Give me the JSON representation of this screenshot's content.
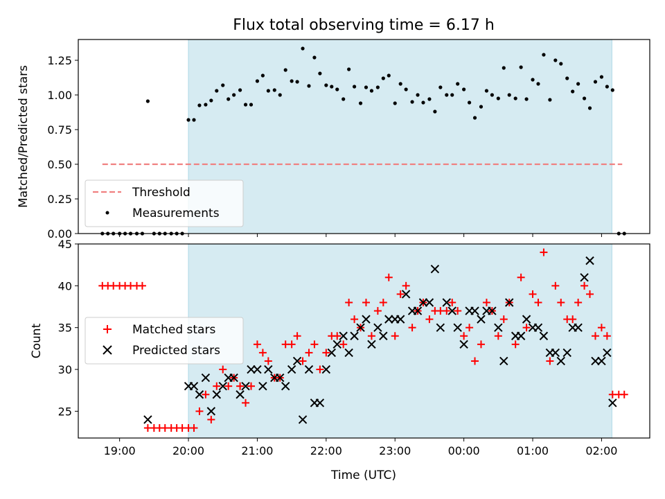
{
  "chart_data": {
    "title": "Flux total observing time = 6.17 h",
    "xlabel": "Time (UTC)",
    "xlim_hours": [
      18.4,
      26.7
    ],
    "x_ticks": [
      {
        "label": "19:00",
        "hour": 19
      },
      {
        "label": "20:00",
        "hour": 20
      },
      {
        "label": "21:00",
        "hour": 21
      },
      {
        "label": "22:00",
        "hour": 22
      },
      {
        "label": "23:00",
        "hour": 23
      },
      {
        "label": "00:00",
        "hour": 24
      },
      {
        "label": "01:00",
        "hour": 25
      },
      {
        "label": "02:00",
        "hour": 26
      }
    ],
    "observing_span_hours": [
      20.0,
      26.15
    ],
    "shade_color": "#add8e6",
    "top_panel": {
      "type": "scatter",
      "ylabel": "Matched/Predicted stars",
      "ylim": [
        0,
        1.4
      ],
      "yticks": [
        "0.00",
        "0.25",
        "0.50",
        "0.75",
        "1.00",
        "1.25"
      ],
      "threshold": {
        "name": "Threshold",
        "value": 0.5,
        "x_range": [
          18.75,
          26.3
        ],
        "color": "#f08080"
      },
      "measurements": {
        "name": "Measurements",
        "color": "#000000",
        "points": [
          [
            18.75,
            0
          ],
          [
            18.83,
            0
          ],
          [
            18.91,
            0
          ],
          [
            19.0,
            0
          ],
          [
            19.08,
            0
          ],
          [
            19.16,
            0
          ],
          [
            19.25,
            0
          ],
          [
            19.33,
            0
          ],
          [
            19.41,
            0.955
          ],
          [
            19.5,
            0
          ],
          [
            19.58,
            0
          ],
          [
            19.66,
            0
          ],
          [
            19.75,
            0
          ],
          [
            19.83,
            0
          ],
          [
            19.91,
            0
          ],
          [
            20.0,
            0.82
          ],
          [
            20.08,
            0.82
          ],
          [
            20.16,
            0.925
          ],
          [
            20.25,
            0.93
          ],
          [
            20.33,
            0.96
          ],
          [
            20.41,
            1.03
          ],
          [
            20.5,
            1.07
          ],
          [
            20.58,
            0.97
          ],
          [
            20.66,
            1.0
          ],
          [
            20.75,
            1.035
          ],
          [
            20.83,
            0.93
          ],
          [
            20.91,
            0.93
          ],
          [
            21.0,
            1.1
          ],
          [
            21.08,
            1.14
          ],
          [
            21.16,
            1.03
          ],
          [
            21.25,
            1.035
          ],
          [
            21.33,
            1.0
          ],
          [
            21.41,
            1.18
          ],
          [
            21.5,
            1.1
          ],
          [
            21.58,
            1.095
          ],
          [
            21.66,
            1.335
          ],
          [
            21.75,
            1.065
          ],
          [
            21.83,
            1.27
          ],
          [
            21.91,
            1.155
          ],
          [
            22.0,
            1.07
          ],
          [
            22.08,
            1.06
          ],
          [
            22.16,
            1.04
          ],
          [
            22.25,
            0.97
          ],
          [
            22.33,
            1.185
          ],
          [
            22.41,
            1.06
          ],
          [
            22.5,
            0.94
          ],
          [
            22.58,
            1.055
          ],
          [
            22.66,
            1.03
          ],
          [
            22.75,
            1.055
          ],
          [
            22.83,
            1.12
          ],
          [
            22.91,
            1.14
          ],
          [
            23.0,
            0.94
          ],
          [
            23.08,
            1.08
          ],
          [
            23.16,
            1.04
          ],
          [
            23.25,
            0.95
          ],
          [
            23.33,
            1.0
          ],
          [
            23.41,
            0.945
          ],
          [
            23.5,
            0.97
          ],
          [
            23.58,
            0.88
          ],
          [
            23.66,
            1.055
          ],
          [
            23.75,
            1.0
          ],
          [
            23.83,
            1.0
          ],
          [
            23.91,
            1.08
          ],
          [
            24.0,
            1.04
          ],
          [
            24.08,
            0.945
          ],
          [
            24.16,
            0.835
          ],
          [
            24.25,
            0.915
          ],
          [
            24.33,
            1.03
          ],
          [
            24.41,
            1.0
          ],
          [
            24.5,
            0.975
          ],
          [
            24.58,
            1.195
          ],
          [
            24.66,
            1.0
          ],
          [
            24.75,
            0.975
          ],
          [
            24.83,
            1.2
          ],
          [
            24.91,
            0.97
          ],
          [
            25.0,
            1.11
          ],
          [
            25.08,
            1.08
          ],
          [
            25.16,
            1.29
          ],
          [
            25.25,
            0.965
          ],
          [
            25.33,
            1.25
          ],
          [
            25.41,
            1.225
          ],
          [
            25.5,
            1.12
          ],
          [
            25.58,
            1.025
          ],
          [
            25.66,
            1.08
          ],
          [
            25.75,
            0.975
          ],
          [
            25.83,
            0.905
          ],
          [
            25.91,
            1.095
          ],
          [
            26.0,
            1.13
          ],
          [
            26.08,
            1.06
          ],
          [
            26.16,
            1.035
          ],
          [
            26.25,
            0
          ],
          [
            26.33,
            0
          ]
        ]
      },
      "legend_position": "lower-left"
    },
    "bottom_panel": {
      "type": "scatter",
      "ylabel": "Count",
      "ylim": [
        21.8,
        45
      ],
      "yticks": [
        "25",
        "30",
        "35",
        "40",
        "45"
      ],
      "matched": {
        "name": "Matched stars",
        "color": "#ff0000",
        "points": [
          [
            18.75,
            40
          ],
          [
            18.83,
            40
          ],
          [
            18.91,
            40
          ],
          [
            19.0,
            40
          ],
          [
            19.08,
            40
          ],
          [
            19.16,
            40
          ],
          [
            19.25,
            40
          ],
          [
            19.33,
            40
          ],
          [
            19.41,
            23
          ],
          [
            19.5,
            23
          ],
          [
            19.58,
            23
          ],
          [
            19.66,
            23
          ],
          [
            19.75,
            23
          ],
          [
            19.83,
            23
          ],
          [
            19.91,
            23
          ],
          [
            20.0,
            23
          ],
          [
            20.08,
            23
          ],
          [
            20.16,
            25
          ],
          [
            20.25,
            27
          ],
          [
            20.33,
            24
          ],
          [
            20.41,
            28
          ],
          [
            20.5,
            30
          ],
          [
            20.58,
            28
          ],
          [
            20.66,
            29
          ],
          [
            20.75,
            28
          ],
          [
            20.83,
            26
          ],
          [
            20.91,
            28
          ],
          [
            21.0,
            33
          ],
          [
            21.08,
            32
          ],
          [
            21.16,
            31
          ],
          [
            21.25,
            29
          ],
          [
            21.33,
            29
          ],
          [
            21.41,
            33
          ],
          [
            21.5,
            33
          ],
          [
            21.58,
            34
          ],
          [
            21.66,
            31
          ],
          [
            21.75,
            32
          ],
          [
            21.83,
            33
          ],
          [
            21.91,
            30
          ],
          [
            22.0,
            32
          ],
          [
            22.08,
            34
          ],
          [
            22.16,
            34
          ],
          [
            22.25,
            33
          ],
          [
            22.33,
            38
          ],
          [
            22.41,
            36
          ],
          [
            22.5,
            35
          ],
          [
            22.58,
            38
          ],
          [
            22.66,
            34
          ],
          [
            22.75,
            37
          ],
          [
            22.83,
            38
          ],
          [
            22.91,
            41
          ],
          [
            23.0,
            34
          ],
          [
            23.08,
            39
          ],
          [
            23.16,
            40
          ],
          [
            23.25,
            35
          ],
          [
            23.33,
            37
          ],
          [
            23.41,
            38
          ],
          [
            23.5,
            36
          ],
          [
            23.58,
            37
          ],
          [
            23.66,
            37
          ],
          [
            23.75,
            37
          ],
          [
            23.83,
            38
          ],
          [
            23.91,
            37
          ],
          [
            24.0,
            34
          ],
          [
            24.08,
            35
          ],
          [
            24.16,
            31
          ],
          [
            24.25,
            33
          ],
          [
            24.33,
            38
          ],
          [
            24.41,
            37
          ],
          [
            24.5,
            34
          ],
          [
            24.58,
            36
          ],
          [
            24.66,
            38
          ],
          [
            24.75,
            33
          ],
          [
            24.83,
            41
          ],
          [
            24.91,
            35
          ],
          [
            25.0,
            39
          ],
          [
            25.08,
            38
          ],
          [
            25.16,
            44
          ],
          [
            25.25,
            31
          ],
          [
            25.33,
            40
          ],
          [
            25.41,
            38
          ],
          [
            25.5,
            36
          ],
          [
            25.58,
            36
          ],
          [
            25.66,
            38
          ],
          [
            25.75,
            40
          ],
          [
            25.83,
            39
          ],
          [
            25.91,
            34
          ],
          [
            26.0,
            35
          ],
          [
            26.08,
            34
          ],
          [
            26.16,
            27
          ],
          [
            26.25,
            27
          ],
          [
            26.33,
            27
          ]
        ]
      },
      "predicted": {
        "name": "Predicted stars",
        "color": "#000000",
        "points": [
          [
            19.41,
            24
          ],
          [
            20.0,
            28
          ],
          [
            20.08,
            28
          ],
          [
            20.16,
            27
          ],
          [
            20.25,
            29
          ],
          [
            20.33,
            25
          ],
          [
            20.41,
            27
          ],
          [
            20.5,
            28
          ],
          [
            20.58,
            29
          ],
          [
            20.66,
            29
          ],
          [
            20.75,
            27
          ],
          [
            20.83,
            28
          ],
          [
            20.91,
            30
          ],
          [
            21.0,
            30
          ],
          [
            21.08,
            28
          ],
          [
            21.16,
            30
          ],
          [
            21.25,
            29
          ],
          [
            21.33,
            29
          ],
          [
            21.41,
            28
          ],
          [
            21.5,
            30
          ],
          [
            21.58,
            31
          ],
          [
            21.66,
            24
          ],
          [
            21.75,
            30
          ],
          [
            21.83,
            26
          ],
          [
            21.91,
            26
          ],
          [
            22.0,
            30
          ],
          [
            22.08,
            32
          ],
          [
            22.16,
            33
          ],
          [
            22.25,
            34
          ],
          [
            22.33,
            32
          ],
          [
            22.41,
            34
          ],
          [
            22.5,
            35
          ],
          [
            22.58,
            36
          ],
          [
            22.66,
            33
          ],
          [
            22.75,
            35
          ],
          [
            22.83,
            34
          ],
          [
            22.91,
            36
          ],
          [
            23.0,
            36
          ],
          [
            23.08,
            36
          ],
          [
            23.16,
            39
          ],
          [
            23.25,
            37
          ],
          [
            23.33,
            37
          ],
          [
            23.41,
            38
          ],
          [
            23.5,
            38
          ],
          [
            23.58,
            42
          ],
          [
            23.66,
            35
          ],
          [
            23.75,
            38
          ],
          [
            23.83,
            37
          ],
          [
            23.91,
            35
          ],
          [
            24.0,
            33
          ],
          [
            24.08,
            37
          ],
          [
            24.16,
            37
          ],
          [
            24.25,
            36
          ],
          [
            24.33,
            37
          ],
          [
            24.41,
            37
          ],
          [
            24.5,
            35
          ],
          [
            24.58,
            31
          ],
          [
            24.66,
            38
          ],
          [
            24.75,
            34
          ],
          [
            24.83,
            34
          ],
          [
            24.91,
            36
          ],
          [
            25.0,
            35
          ],
          [
            25.08,
            35
          ],
          [
            25.16,
            34
          ],
          [
            25.25,
            32
          ],
          [
            25.33,
            32
          ],
          [
            25.41,
            31
          ],
          [
            25.5,
            32
          ],
          [
            25.58,
            35
          ],
          [
            25.66,
            35
          ],
          [
            25.75,
            41
          ],
          [
            25.83,
            43
          ],
          [
            25.91,
            31
          ],
          [
            26.0,
            31
          ],
          [
            26.08,
            32
          ],
          [
            26.16,
            26
          ]
        ]
      },
      "legend_position": "center-left"
    }
  }
}
